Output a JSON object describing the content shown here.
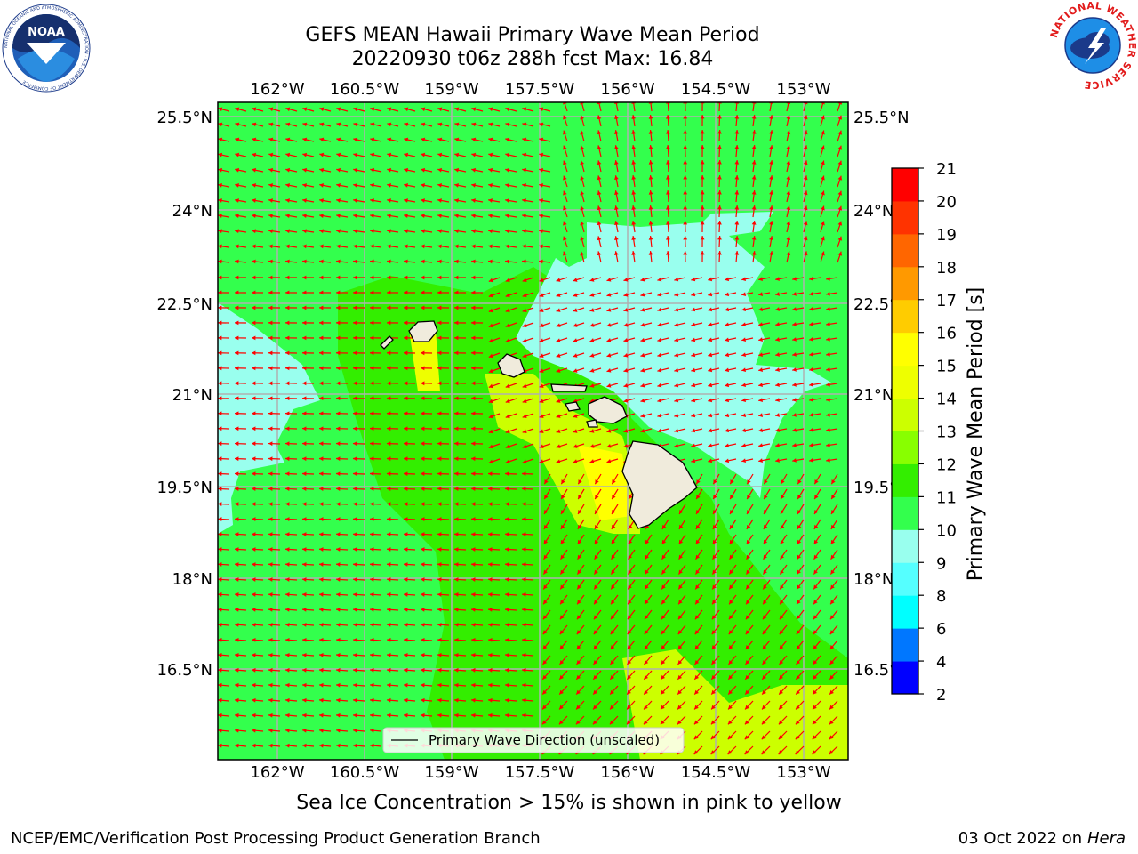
{
  "title_line1": "GEFS MEAN Hawaii Primary Wave Mean Period",
  "title_line2": "20220930 t06z 288h fcst   Max: 16.84",
  "caption": "Sea Ice Concentration > 15% is shown in pink to yellow",
  "footer_left": "NCEP/EMC/Verification Post Processing Product Generation Branch",
  "footer_right_date": "03 Oct 2022 on ",
  "footer_right_host": "Hera",
  "noaa_logo": {
    "text": "NOAA",
    "ring": "NATIONAL OCEANIC AND ATMOSPHERIC ADMINISTRATION · U.S. DEPARTMENT OF COMMERCE"
  },
  "nws_logo": {
    "ring": "NATIONAL WEATHER SERVICE"
  },
  "map": {
    "lon_labels": [
      "162°W",
      "160.5°W",
      "159°W",
      "157.5°W",
      "156°W",
      "154.5°W",
      "153°W"
    ],
    "lat_labels": [
      "25.5°N",
      "24°N",
      "22.5°N",
      "21°N",
      "19.5°N",
      "18°N",
      "16.5°N"
    ],
    "legend_label": "Primary Wave Direction (unscaled)",
    "colors": {
      "ocean_base": "#33ff4d",
      "land": "#f0ebdc",
      "arrow": "#ff0000",
      "grid": "#b0b0b0"
    }
  },
  "colorbar": {
    "label": "Primary Wave Mean Period [s]",
    "ticks": [
      "2",
      "4",
      "6",
      "8",
      "9",
      "10",
      "11",
      "12",
      "13",
      "14",
      "15",
      "16",
      "17",
      "18",
      "19",
      "20",
      "21"
    ],
    "colors": [
      "#0000ff",
      "#0077ff",
      "#00ffff",
      "#55ffff",
      "#99ffee",
      "#33ff4d",
      "#33ee00",
      "#88ff00",
      "#ccff00",
      "#eeff00",
      "#ffff00",
      "#ffcc00",
      "#ff9900",
      "#ff6600",
      "#ff3300",
      "#ff0000"
    ]
  }
}
